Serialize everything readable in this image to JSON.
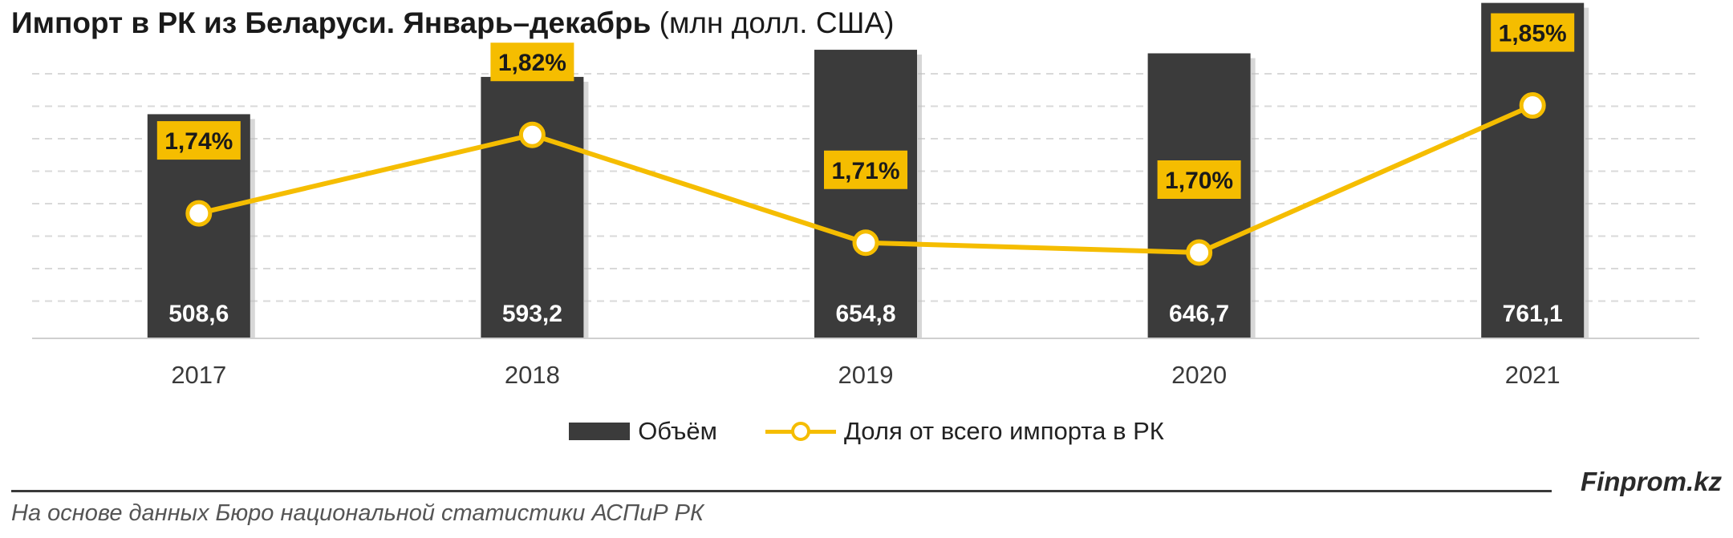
{
  "title": {
    "main": "Импорт в РК из Беларуси. Январь–декабрь",
    "unit": "(млн долл. США)"
  },
  "legend": {
    "volume_label": "Объём",
    "share_label": "Доля от всего импорта в РК"
  },
  "footer": {
    "brand": "Finprom.kz",
    "source": "На основе данных Бюро национальной статистики АСПиР РК"
  },
  "colors": {
    "bar": "#3b3b3b",
    "line": "#f5bd00",
    "label_box": "#f5bd00",
    "grid": "#d9d9d9"
  },
  "chart_data": {
    "type": "bar",
    "categories": [
      "2017",
      "2018",
      "2019",
      "2020",
      "2021"
    ],
    "series": [
      {
        "name": "Объём",
        "type": "bar",
        "values": [
          508.6,
          593.2,
          654.8,
          646.7,
          761.1
        ],
        "labels": [
          "508,6",
          "593,2",
          "654,8",
          "646,7",
          "761,1"
        ]
      },
      {
        "name": "Доля от всего импорта в РК",
        "type": "line",
        "values": [
          1.74,
          1.82,
          1.71,
          1.7,
          1.85
        ],
        "labels": [
          "1,74%",
          "1,82%",
          "1,71%",
          "1,70%",
          "1,85%"
        ]
      }
    ],
    "title": "Импорт в РК из Беларуси. Январь–декабрь (млн долл. США)",
    "legend_position": "bottom",
    "grid": true
  }
}
